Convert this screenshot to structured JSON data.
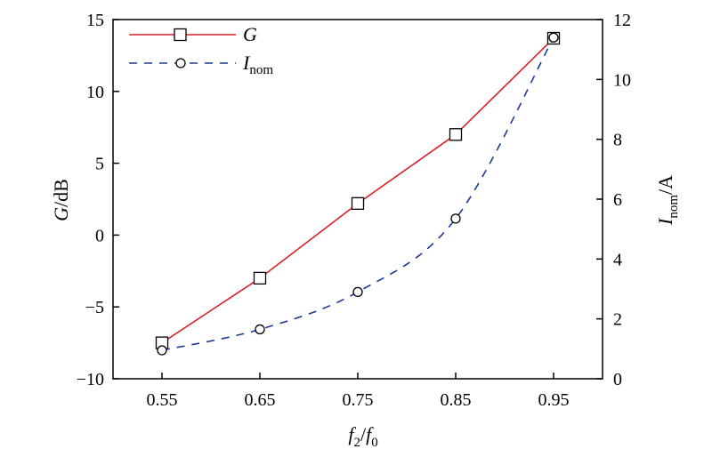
{
  "colors": {
    "gain": "#d9202a",
    "current": "#1a3a9a",
    "axis": "#000000"
  },
  "chart_data": {
    "type": "line",
    "x": [
      0.55,
      0.65,
      0.75,
      0.85,
      0.95
    ],
    "x_tick_labels": [
      "0.55",
      "0.65",
      "0.75",
      "0.85",
      "0.95"
    ],
    "xlim": [
      0.5,
      1.0
    ],
    "xlabel": {
      "main": "f",
      "sub": "2",
      "sep": "/",
      "main2": "f",
      "sub2": "0"
    },
    "ylim_left": [
      -10,
      15
    ],
    "y_left_ticks": [
      15,
      10,
      5,
      0,
      -5,
      -10
    ],
    "y_left_tick_labels": [
      "15",
      "10",
      "5",
      "0",
      "−5",
      "−10"
    ],
    "ylabel_left": {
      "main": "G",
      "rest": "/dB"
    },
    "ylim_right": [
      0,
      12
    ],
    "y_right_ticks": [
      12,
      10,
      8,
      6,
      4,
      2,
      0
    ],
    "y_right_tick_labels": [
      "12",
      "10",
      "8",
      "6",
      "4",
      "2",
      "0"
    ],
    "ylabel_right": {
      "main": "I",
      "sub": "nom",
      "rest": "/A"
    },
    "grid": false,
    "legend_position": "top-left",
    "series": [
      {
        "name": "G",
        "axis": "left",
        "marker": "square",
        "line": "solid",
        "values": [
          -7.5,
          -3.0,
          2.2,
          7.0,
          13.7
        ]
      },
      {
        "name": "I",
        "name_sub": "nom",
        "axis": "right",
        "marker": "circle",
        "line": "dashed",
        "values": [
          0.95,
          1.65,
          2.9,
          5.35,
          11.4
        ]
      }
    ]
  }
}
